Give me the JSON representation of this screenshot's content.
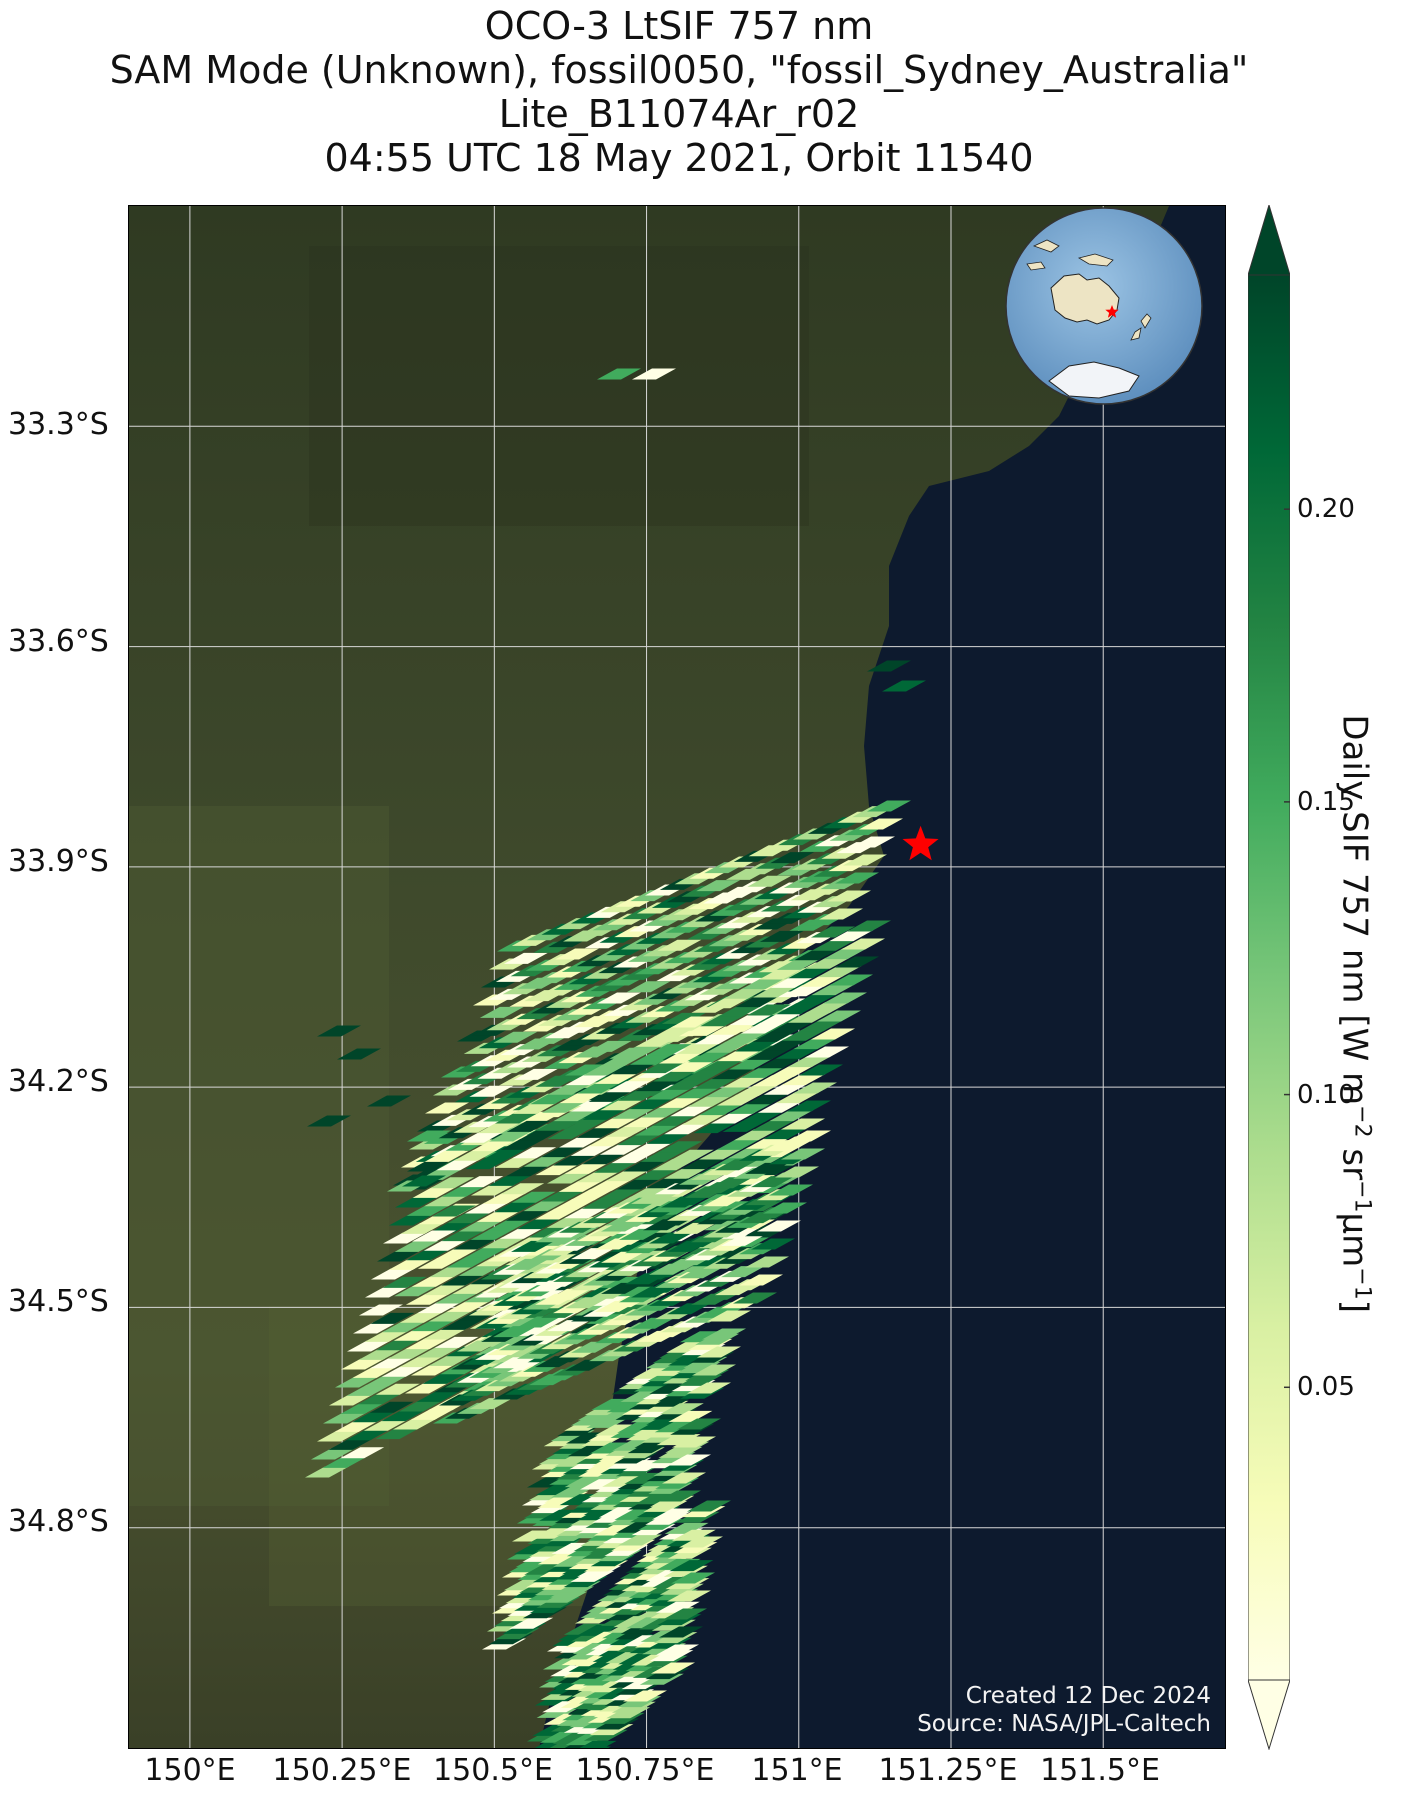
{
  "title": {
    "line1": "OCO-3 LtSIF 757 nm",
    "line2": "SAM Mode (Unknown), fossil0050, \"fossil_Sydney_Australia\"",
    "line3": "Lite_B11074Ar_r02",
    "line4": "04:55 UTC 18 May 2021, Orbit 11540"
  },
  "map": {
    "lat_labels": [
      "33.3°S",
      "33.6°S",
      "33.9°S",
      "34.2°S",
      "34.5°S",
      "34.8°S"
    ],
    "lon_labels": [
      "150°E",
      "150.25°E",
      "150.5°E",
      "150.75°E",
      "151°E",
      "151.25°E",
      "151.5°E"
    ],
    "extent": {
      "lon_min": 149.9,
      "lon_max": 151.7,
      "lat_min": -35.1,
      "lat_max": -33.0
    },
    "target_marker": {
      "name": "fossil_Sydney_Australia",
      "lon": 151.2,
      "lat": -33.87,
      "color": "#ff0000"
    },
    "globe_inset": {
      "center_region": "Australia",
      "marker_color": "#ff0000"
    },
    "colors": {
      "land": "#3d4a2a",
      "ocean": "#0d1a2e",
      "grid": "#d8d8d8"
    }
  },
  "credits": {
    "created": "Created 12 Dec 2024",
    "source": "Source: NASA/JPL-Caltech"
  },
  "colorbar": {
    "label_main": "Daily SIF 757 nm [W m",
    "label_sup1": "−2",
    "label_mid1": " sr",
    "label_sup2": "−1",
    "label_mid2": "μm",
    "label_sup3": "−1",
    "label_end": "]",
    "ticks": [
      "0.20",
      "0.15",
      "0.10",
      "0.05"
    ],
    "tick_values": [
      0.2,
      0.15,
      0.1,
      0.05
    ],
    "range": [
      0.0,
      0.24
    ],
    "colormap": "YlGn",
    "extend": "both"
  }
}
